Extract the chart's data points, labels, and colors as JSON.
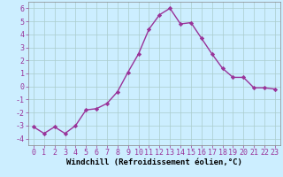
{
  "x": [
    0,
    1,
    2,
    3,
    4,
    5,
    6,
    7,
    8,
    9,
    10,
    11,
    12,
    13,
    14,
    15,
    16,
    17,
    18,
    19,
    20,
    21,
    22,
    23
  ],
  "y": [
    -3.1,
    -3.6,
    -3.1,
    -3.6,
    -3.0,
    -1.8,
    -1.7,
    -1.3,
    -0.4,
    1.1,
    2.5,
    4.4,
    5.5,
    6.0,
    4.8,
    4.9,
    3.7,
    2.5,
    1.4,
    0.7,
    0.7,
    -0.1,
    -0.1,
    -0.2
  ],
  "line_color": "#993399",
  "marker": "D",
  "markersize": 2.2,
  "linewidth": 1.0,
  "bg_color": "#cceeff",
  "grid_color": "#aacccc",
  "xlabel": "Windchill (Refroidissement éolien,°C)",
  "xlabel_fontsize": 6.5,
  "xlim": [
    -0.5,
    23.5
  ],
  "ylim": [
    -4.5,
    6.5
  ],
  "yticks": [
    -4,
    -3,
    -2,
    -1,
    0,
    1,
    2,
    3,
    4,
    5,
    6
  ],
  "xticks": [
    0,
    1,
    2,
    3,
    4,
    5,
    6,
    7,
    8,
    9,
    10,
    11,
    12,
    13,
    14,
    15,
    16,
    17,
    18,
    19,
    20,
    21,
    22,
    23
  ],
  "tick_fontsize": 6.0,
  "spine_color": "#888888"
}
